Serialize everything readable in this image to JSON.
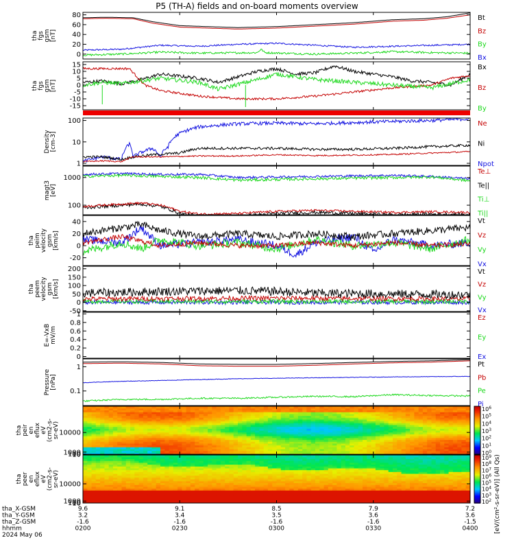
{
  "title": "P5 (TH-A) fields and on-board moments overview",
  "colors": {
    "black": "#000000",
    "red": "#c40000",
    "green": "#1bd81b",
    "blue": "#1010e0",
    "bar": "#ee0000"
  },
  "chart_data": [
    {
      "type": "line",
      "ylabel": [
        "tha",
        "fgs",
        "gsm",
        "[nT]"
      ],
      "yticks": [
        0,
        20,
        40,
        60,
        80
      ],
      "ylim": [
        -10,
        85
      ],
      "legend": [
        {
          "text": "Bt",
          "color": "#000000"
        },
        {
          "text": "Bz",
          "color": "#c40000"
        },
        {
          "text": "By",
          "color": "#1bd81b"
        },
        {
          "text": "Bx",
          "color": "#1010e0"
        }
      ],
      "series": [
        {
          "color": "#000000",
          "t": [
            0,
            0.06,
            0.13,
            0.18,
            0.25,
            0.32,
            0.4,
            0.5,
            0.6,
            0.7,
            0.8,
            0.88,
            0.94,
            1
          ],
          "v": [
            74,
            75,
            74,
            66,
            58,
            56,
            54,
            56,
            60,
            64,
            70,
            72,
            76,
            84
          ]
        },
        {
          "color": "#c40000",
          "t": [
            0,
            0.06,
            0.13,
            0.18,
            0.25,
            0.32,
            0.4,
            0.5,
            0.6,
            0.7,
            0.8,
            0.88,
            0.94,
            1
          ],
          "v": [
            72,
            73,
            72,
            63,
            55,
            53,
            51,
            53,
            57,
            61,
            67,
            69,
            73,
            80
          ]
        },
        {
          "color": "#1010e0",
          "t": [
            0,
            0.1,
            0.2,
            0.3,
            0.4,
            0.5,
            0.6,
            0.7,
            0.8,
            0.9,
            1
          ],
          "v": [
            8,
            10,
            18,
            16,
            20,
            22,
            18,
            14,
            16,
            18,
            20
          ],
          "noise": 1.5
        },
        {
          "color": "#1bd81b",
          "t": [
            0,
            0.1,
            0.2,
            0.3,
            0.45,
            0.46,
            0.47,
            0.6,
            0.7,
            0.8,
            0.9,
            1
          ],
          "v": [
            -2,
            0,
            4,
            2,
            3,
            10,
            3,
            0,
            2,
            5,
            3,
            2
          ],
          "noise": 2
        }
      ]
    },
    {
      "type": "line",
      "ylabel": [
        "tha",
        "fgs",
        "gsm",
        "[nT]"
      ],
      "yticks": [
        -15,
        -10,
        -5,
        0,
        5,
        10,
        15
      ],
      "ylim": [
        -18,
        17
      ],
      "legend": [
        {
          "text": "Bx",
          "color": "#000000"
        },
        {
          "text": "Bz",
          "color": "#c40000"
        },
        {
          "text": "By",
          "color": "#1bd81b"
        }
      ],
      "series": [
        {
          "color": "#000000",
          "t": [
            0,
            0.05,
            0.1,
            0.15,
            0.2,
            0.3,
            0.35,
            0.45,
            0.5,
            0.55,
            0.6,
            0.65,
            0.7,
            0.8,
            0.85,
            0.9,
            0.95,
            1
          ],
          "v": [
            2,
            3,
            1,
            4,
            8,
            5,
            2,
            10,
            12,
            8,
            9,
            14,
            10,
            6,
            3,
            2,
            0,
            8
          ],
          "noise": 1.2
        },
        {
          "color": "#c40000",
          "t": [
            0,
            0.06,
            0.12,
            0.16,
            0.2,
            0.3,
            0.4,
            0.5,
            0.6,
            0.7,
            0.8,
            0.9,
            0.95,
            1
          ],
          "v": [
            12,
            12,
            12,
            0,
            -4,
            -8,
            -10,
            -10,
            -8,
            -5,
            -2,
            0,
            5,
            7
          ],
          "noise": 0.8
        },
        {
          "color": "#1bd81b",
          "t": [
            0,
            0.05,
            0.1,
            0.15,
            0.2,
            0.3,
            0.35,
            0.45,
            0.5,
            0.55,
            0.6,
            0.7,
            0.8,
            0.9,
            1
          ],
          "v": [
            0,
            2,
            1,
            3,
            5,
            2,
            -3,
            4,
            8,
            6,
            4,
            2,
            0,
            -2,
            4
          ],
          "noise": 1.5,
          "spikes": [
            [
              0.42,
              -16
            ],
            [
              0.05,
              -14
            ]
          ]
        }
      ]
    },
    {
      "type": "bar"
    },
    {
      "type": "line",
      "log": true,
      "ylabel": [
        "Density",
        "[cm-3]"
      ],
      "yticks": [
        1,
        10,
        100
      ],
      "ylim": [
        0.8,
        130
      ],
      "legend": [
        {
          "text": "Ne",
          "color": "#c40000"
        },
        {
          "text": "Ni",
          "color": "#000000"
        },
        {
          "text": "Npot",
          "color": "#1010e0"
        }
      ],
      "series": [
        {
          "color": "#1010e0",
          "t": [
            0,
            0.05,
            0.1,
            0.12,
            0.13,
            0.18,
            0.2,
            0.22,
            0.25,
            0.3,
            0.35,
            0.4,
            0.5,
            0.6,
            0.7,
            0.8,
            0.9,
            0.95,
            1
          ],
          "v": [
            1.2,
            2,
            1.5,
            8,
            2,
            5,
            2,
            6,
            25,
            50,
            60,
            70,
            75,
            70,
            80,
            90,
            100,
            110,
            120
          ],
          "noise": 0.08
        },
        {
          "color": "#000000",
          "t": [
            0,
            0.05,
            0.1,
            0.13,
            0.18,
            0.25,
            0.3,
            0.4,
            0.5,
            0.6,
            0.7,
            0.8,
            0.9,
            1
          ],
          "v": [
            2,
            2,
            1.5,
            2,
            2.5,
            3,
            5,
            5,
            5,
            4.5,
            4.5,
            5,
            6,
            7
          ],
          "noise": 0.06
        },
        {
          "color": "#c40000",
          "t": [
            0,
            0.05,
            0.1,
            0.13,
            0.2,
            0.3,
            0.4,
            0.5,
            0.6,
            0.7,
            0.8,
            0.9,
            1
          ],
          "v": [
            1.2,
            1.3,
            1.2,
            2,
            2,
            2.2,
            2.2,
            2.5,
            2.3,
            2.4,
            2.6,
            3,
            3.5
          ],
          "noise": 0.03
        }
      ]
    },
    {
      "type": "line",
      "log": true,
      "ylabel": [
        "magt3",
        "[eV]"
      ],
      "yticks": [
        100,
        1000
      ],
      "ylim": [
        45,
        2600
      ],
      "legend": [
        {
          "text": "Te⊥",
          "color": "#c40000"
        },
        {
          "text": "Te||",
          "color": "#000000"
        },
        {
          "text": "Ti⊥",
          "color": "#1bd81b"
        },
        {
          "text": "Ti||",
          "color": "#1bd81b"
        }
      ],
      "series": [
        {
          "color": "#1010e0",
          "t": [
            0,
            0.1,
            0.2,
            0.3,
            0.4,
            0.5,
            0.6,
            0.7,
            0.8,
            0.9,
            1
          ],
          "v": [
            1300,
            1400,
            1300,
            1300,
            1000,
            1050,
            1100,
            1150,
            1200,
            1100,
            900
          ],
          "noise": 0.04
        },
        {
          "color": "#1bd81b",
          "t": [
            0,
            0.1,
            0.2,
            0.3,
            0.4,
            0.5,
            0.6,
            0.7,
            0.8,
            0.9,
            1
          ],
          "v": [
            1100,
            1200,
            1100,
            1000,
            800,
            850,
            900,
            950,
            1000,
            1050,
            750
          ],
          "noise": 0.05
        },
        {
          "color": "#000000",
          "t": [
            0,
            0.05,
            0.1,
            0.15,
            0.2,
            0.25,
            0.3,
            0.4,
            0.5,
            0.6,
            0.7,
            0.8,
            0.9,
            1
          ],
          "v": [
            80,
            90,
            100,
            110,
            90,
            50,
            40,
            40,
            50,
            55,
            50,
            45,
            48,
            45
          ],
          "noise": 0.06
        },
        {
          "color": "#c40000",
          "t": [
            0,
            0.05,
            0.1,
            0.15,
            0.2,
            0.25,
            0.3,
            0.4,
            0.5,
            0.6,
            0.7,
            0.8,
            0.9,
            1
          ],
          "v": [
            90,
            100,
            110,
            120,
            100,
            60,
            48,
            50,
            60,
            65,
            60,
            55,
            58,
            55
          ],
          "noise": 0.04
        }
      ]
    },
    {
      "type": "line",
      "ylabel": [
        "tha",
        "peim",
        "velocity",
        "gsm",
        "[km/s]"
      ],
      "yticks": [
        -20,
        0,
        20,
        40
      ],
      "ylim": [
        -33,
        50
      ],
      "legend": [
        {
          "text": "Vt",
          "color": "#000000"
        },
        {
          "text": "Vz",
          "color": "#c40000"
        },
        {
          "text": "Vy",
          "color": "#1bd81b"
        },
        {
          "text": "Vx",
          "color": "#1010e0"
        }
      ],
      "series": [
        {
          "color": "#1010e0",
          "t": [
            0,
            0.1,
            0.15,
            0.2,
            0.3,
            0.4,
            0.5,
            0.55,
            0.6,
            0.7,
            0.75,
            0.8,
            0.9,
            1
          ],
          "v": [
            10,
            5,
            30,
            0,
            5,
            10,
            0,
            -15,
            5,
            15,
            -10,
            10,
            0,
            5
          ],
          "noise": 7
        },
        {
          "color": "#1bd81b",
          "t": [
            0,
            0.1,
            0.15,
            0.2,
            0.3,
            0.4,
            0.5,
            0.6,
            0.7,
            0.8,
            0.9,
            1
          ],
          "v": [
            -10,
            5,
            -5,
            10,
            0,
            5,
            -5,
            10,
            0,
            5,
            -5,
            10
          ],
          "noise": 7
        },
        {
          "color": "#c40000",
          "t": [
            0,
            0.1,
            0.2,
            0.3,
            0.4,
            0.5,
            0.6,
            0.7,
            0.8,
            0.9,
            1
          ],
          "v": [
            5,
            15,
            0,
            5,
            0,
            0,
            5,
            0,
            5,
            0,
            3
          ],
          "noise": 4
        },
        {
          "color": "#000000",
          "t": [
            0,
            0.1,
            0.15,
            0.2,
            0.3,
            0.4,
            0.5,
            0.6,
            0.7,
            0.8,
            0.9,
            1
          ],
          "v": [
            20,
            30,
            35,
            25,
            15,
            20,
            15,
            20,
            15,
            20,
            25,
            30
          ],
          "noise": 6
        }
      ]
    },
    {
      "type": "line",
      "ylabel": [
        "tha",
        "peem",
        "velocity",
        "gsm",
        "[km/s]"
      ],
      "yticks": [
        -50,
        0,
        50,
        100,
        150,
        200
      ],
      "ylim": [
        -55,
        215
      ],
      "legend": [
        {
          "text": "Vt",
          "color": "#000000"
        },
        {
          "text": "Vz",
          "color": "#c40000"
        },
        {
          "text": "Vy",
          "color": "#1bd81b"
        },
        {
          "text": "Vx",
          "color": "#1010e0"
        }
      ],
      "series": [
        {
          "color": "#1010e0",
          "t": [
            0,
            0.5,
            1
          ],
          "v": [
            0,
            0,
            0
          ],
          "noise": 12
        },
        {
          "color": "#1bd81b",
          "t": [
            0,
            0.5,
            1
          ],
          "v": [
            5,
            5,
            5
          ],
          "noise": 12
        },
        {
          "color": "#c40000",
          "t": [
            0,
            0.5,
            1
          ],
          "v": [
            20,
            25,
            20
          ],
          "noise": 14
        },
        {
          "color": "#000000",
          "t": [
            0,
            0.2,
            0.4,
            0.5,
            0.6,
            0.8,
            1
          ],
          "v": [
            55,
            65,
            70,
            65,
            55,
            50,
            45
          ],
          "noise": 26
        }
      ]
    },
    {
      "type": "line",
      "ylabel": [
        "E=-VxB",
        "mV/m"
      ],
      "yticks": [
        0.0,
        0.2,
        0.4,
        0.6,
        0.8,
        1.0
      ],
      "ylim": [
        -0.04,
        1.04
      ],
      "legend": [
        {
          "text": "Ez",
          "color": "#c40000"
        },
        {
          "text": "Ey",
          "color": "#1bd81b"
        },
        {
          "text": "Ex",
          "color": "#1010e0"
        }
      ],
      "series": []
    },
    {
      "type": "line",
      "log": true,
      "ylabel": [
        "Pressure",
        "[nPa]"
      ],
      "yticks": [
        0.1,
        1.0
      ],
      "ylim": [
        0.025,
        2.1
      ],
      "legend": [
        {
          "text": "Pt",
          "color": "#000000"
        },
        {
          "text": "Pb",
          "color": "#c40000"
        },
        {
          "text": "Pe",
          "color": "#1bd81b"
        },
        {
          "text": "Pi",
          "color": "#1010e0"
        }
      ],
      "series": [
        {
          "color": "#000000",
          "t": [
            0,
            0.1,
            0.2,
            0.3,
            0.4,
            0.5,
            0.6,
            0.7,
            0.8,
            0.9,
            1
          ],
          "v": [
            1.55,
            1.6,
            1.5,
            1.3,
            1.25,
            1.25,
            1.35,
            1.5,
            1.65,
            1.75,
            1.95
          ]
        },
        {
          "color": "#c40000",
          "t": [
            0,
            0.1,
            0.2,
            0.3,
            0.4,
            0.5,
            0.6,
            0.7,
            0.8,
            0.9,
            1
          ],
          "v": [
            1.35,
            1.4,
            1.3,
            1.1,
            1.05,
            1.05,
            1.15,
            1.3,
            1.45,
            1.55,
            1.75
          ]
        },
        {
          "color": "#1010e0",
          "t": [
            0,
            0.1,
            0.2,
            0.4,
            0.6,
            0.8,
            1
          ],
          "v": [
            0.22,
            0.25,
            0.27,
            0.32,
            0.35,
            0.38,
            0.4
          ],
          "noise": 0.01
        },
        {
          "color": "#1bd81b",
          "t": [
            0,
            0.1,
            0.2,
            0.3,
            0.4,
            0.5,
            0.6,
            0.7,
            0.8,
            0.9,
            1
          ],
          "v": [
            0.038,
            0.045,
            0.045,
            0.05,
            0.05,
            0.055,
            0.06,
            0.058,
            0.07,
            0.065,
            0.062
          ],
          "noise": 0.03
        }
      ]
    },
    {
      "type": "heatmap",
      "ylabel": [
        "tha",
        "peir",
        "en",
        "eflux",
        "eV",
        "(cm2-s-",
        "sr-eV)"
      ],
      "yticks": [
        10,
        100,
        1000,
        10000
      ],
      "ylim": [
        7,
        22000
      ],
      "cbar_ticks": [
        "10^6",
        "10^5",
        "10^4",
        "10^3",
        "10^2",
        "10^1",
        "10^0"
      ],
      "cbar_label": "eV/(cm^2-sec-sr-eV) (All Qs)"
    },
    {
      "type": "heatmap",
      "ylabel": [
        "tha",
        "peer",
        "en",
        "eflux",
        "eV",
        "(cm2-s-",
        "sr-eV)"
      ],
      "yticks": [
        10,
        100,
        1000,
        10000
      ],
      "ylim": [
        6,
        25000
      ],
      "cbar_ticks": [
        "10^9",
        "10^8",
        "10^7",
        "10^6",
        "10^5",
        "10^4",
        "10^3",
        "10^2"
      ],
      "cbar_label": "eV/(cm^2-sec-sr-eV) (All Qs)"
    }
  ],
  "footer": {
    "row_labels": [
      "tha_X-GSM",
      "tha_Y-GSM",
      "tha_Z-GSM",
      "hhmm",
      "2024 May 06"
    ],
    "columns": [
      [
        "9.6",
        "3.2",
        "-1.6",
        "0200"
      ],
      [
        "9.1",
        "3.4",
        "-1.6",
        "0230"
      ],
      [
        "8.5",
        "3.5",
        "-1.6",
        "0300"
      ],
      [
        "7.9",
        "3.6",
        "-1.6",
        "0330"
      ],
      [
        "7.2",
        "3.6",
        "-1.5",
        "0400"
      ]
    ],
    "cbar_unit": "[eV/(cm²-s-sr-eV)] (All Qs)"
  }
}
